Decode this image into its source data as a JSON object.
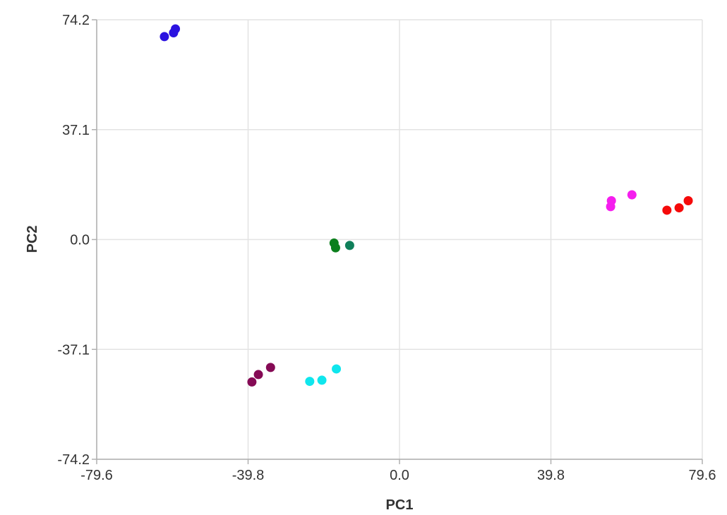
{
  "chart_data": {
    "type": "scatter",
    "xlabel": "PC1",
    "ylabel": "PC2",
    "xlim": [
      -79.6,
      79.6
    ],
    "ylim": [
      -74.2,
      74.2
    ],
    "xticks": [
      "-79.6",
      "-39.8",
      "0.0",
      "39.8",
      "79.6"
    ],
    "yticks": [
      "74.2",
      "37.1",
      "0.0",
      "-37.1",
      "-74.2"
    ],
    "grid": true,
    "series": [
      {
        "color": "#2b12e0",
        "points": [
          [
            -61.8,
            68.5
          ],
          [
            -59.4,
            69.8
          ],
          [
            -58.9,
            71.1
          ]
        ]
      },
      {
        "color": "#f51eee",
        "points": [
          [
            55.5,
            11.1
          ],
          [
            55.7,
            13.1
          ],
          [
            61.1,
            15.1
          ]
        ]
      },
      {
        "color": "#f50a0a",
        "points": [
          [
            70.3,
            9.9
          ],
          [
            73.5,
            10.7
          ],
          [
            75.9,
            13.1
          ]
        ]
      },
      {
        "color": "#0b7f1c",
        "points": [
          [
            -17.2,
            -1.2
          ],
          [
            -16.8,
            -2.8
          ]
        ]
      },
      {
        "color": "#0f7f5a",
        "points": [
          [
            -13.1,
            -2.0
          ]
        ]
      },
      {
        "color": "#850a55",
        "points": [
          [
            -38.8,
            -48.1
          ],
          [
            -37.1,
            -45.6
          ],
          [
            -33.9,
            -43.2
          ]
        ]
      },
      {
        "color": "#0fe6ed",
        "points": [
          [
            -23.6,
            -47.9
          ],
          [
            -20.4,
            -47.5
          ],
          [
            -16.6,
            -43.7
          ]
        ]
      }
    ]
  }
}
